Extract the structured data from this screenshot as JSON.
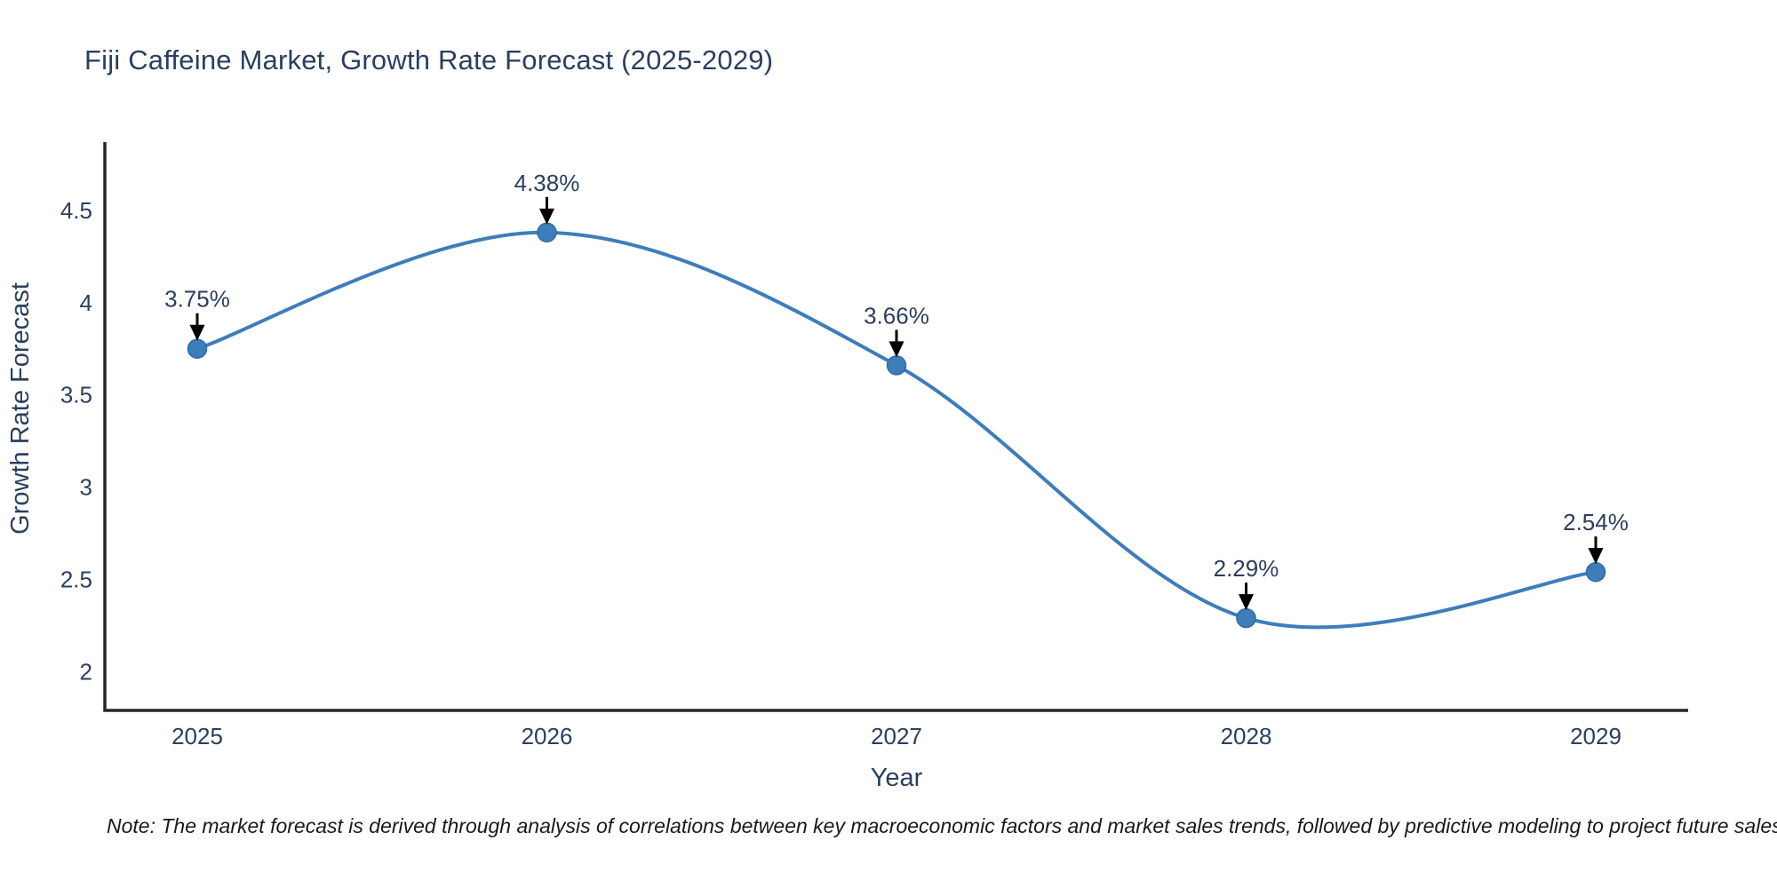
{
  "title": "Fiji Caffeine Market, Growth Rate Forecast (2025-2029)",
  "note": "Note: The market forecast is derived through analysis of correlations between key macroeconomic factors and market sales trends, followed by predictive modeling to project future sales",
  "colors": {
    "line": "#3d7dba",
    "marker_fill": "#3d7dba",
    "marker_edge": "#2f6ba8",
    "axis": "#262626",
    "title_text": "#2a3f5f",
    "tick_text": "#2a3f5f",
    "annotation_text": "#2a3f5f",
    "arrow": "#000000",
    "background": "#ffffff"
  },
  "chart_data": {
    "type": "line",
    "line_shape": "spline",
    "title": "Fiji Caffeine Market, Growth Rate Forecast (2025-2029)",
    "xlabel": "Year",
    "ylabel": "Growth Rate Forecast",
    "x": [
      2025,
      2026,
      2027,
      2028,
      2029
    ],
    "values": [
      3.75,
      4.38,
      3.66,
      2.29,
      2.54
    ],
    "point_labels": [
      "3.75%",
      "4.38%",
      "3.66%",
      "2.29%",
      "2.54%"
    ],
    "yticks": [
      2,
      2.5,
      3,
      3.5,
      4,
      4.5
    ],
    "ytick_labels": [
      "2",
      "2.5",
      "3",
      "3.5",
      "4",
      "4.5"
    ],
    "ylim": [
      1.79,
      4.87
    ],
    "grid": false,
    "legend": "none"
  }
}
